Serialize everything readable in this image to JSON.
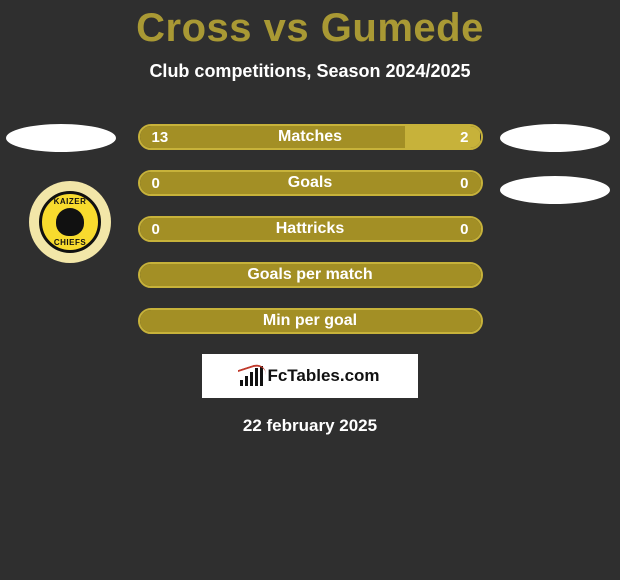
{
  "title": "Cross vs Gumede",
  "subtitle": "Club competitions, Season 2024/2025",
  "date": "22 february 2025",
  "logo_text": "FcTables.com",
  "club_badge": {
    "top": "KAIZER",
    "bottom": "CHIEFS"
  },
  "colors": {
    "title": "#a99934",
    "bar_left": "#a38f25",
    "bar_right": "#c7b23a",
    "bar_border": "#c7b23a",
    "text": "#ffffff",
    "bg": "#2f2f2f"
  },
  "bars": [
    {
      "label": "Matches",
      "left": "13",
      "right": "2",
      "left_pct": 78,
      "right_pct": 22,
      "show_vals": true
    },
    {
      "label": "Goals",
      "left": "0",
      "right": "0",
      "left_pct": 100,
      "right_pct": 0,
      "show_vals": true
    },
    {
      "label": "Hattricks",
      "left": "0",
      "right": "0",
      "left_pct": 100,
      "right_pct": 0,
      "show_vals": true
    },
    {
      "label": "Goals per match",
      "left": "",
      "right": "",
      "left_pct": 100,
      "right_pct": 0,
      "show_vals": false
    },
    {
      "label": "Min per goal",
      "left": "",
      "right": "",
      "left_pct": 100,
      "right_pct": 0,
      "show_vals": false
    }
  ]
}
